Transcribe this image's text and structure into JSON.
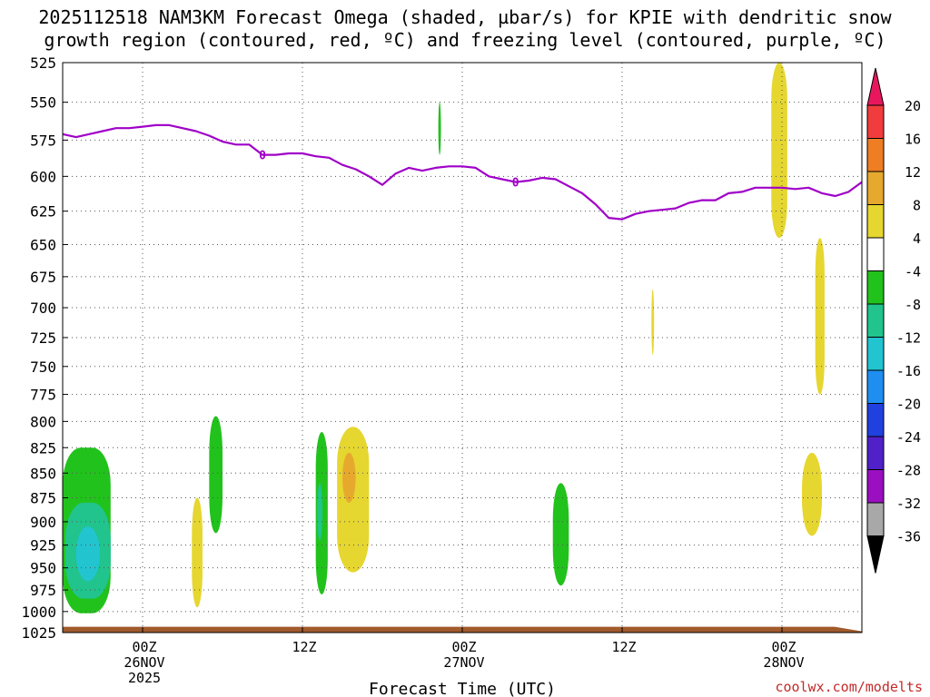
{
  "title_line1": "2025112518 NAM3KM Forecast Omega (shaded, µbar/s) for KPIE with dendritic snow",
  "title_line2": "growth region (contoured, red, ºC) and freezing level (contoured, purple, ºC)",
  "credit": "coolwx.com/modelts",
  "chart_data": {
    "type": "heatmap",
    "title": "2025112518 NAM3KM Forecast Omega (shaded, µbar/s) for KPIE with dendritic snow growth region (contoured, red, ºC) and freezing level (contoured, purple, ºC)",
    "xlabel": "Forecast Time (UTC)",
    "ylabel": "",
    "xlim_hours": [
      0,
      60
    ],
    "ylim_mb": [
      1025,
      525
    ],
    "y_scale": "log-pressure (inverted)",
    "grid": true,
    "y_ticks": [
      525,
      550,
      575,
      600,
      625,
      650,
      675,
      700,
      725,
      750,
      775,
      800,
      825,
      850,
      875,
      900,
      925,
      950,
      975,
      1000,
      1025
    ],
    "x_ticks": [
      {
        "hour": 6,
        "lines": [
          "00Z",
          "26NOV",
          "2025"
        ]
      },
      {
        "hour": 18,
        "lines": [
          "12Z"
        ]
      },
      {
        "hour": 30,
        "lines": [
          "00Z",
          "27NOV"
        ]
      },
      {
        "hour": 42,
        "lines": [
          "12Z"
        ]
      },
      {
        "hour": 54,
        "lines": [
          "00Z",
          "28NOV"
        ]
      }
    ],
    "colorbar": {
      "labels": [
        "20",
        "16",
        "12",
        "8",
        "4",
        "-4",
        "-8",
        "-12",
        "-16",
        "-20",
        "-24",
        "-28",
        "-32",
        "-36"
      ],
      "colors": [
        "#e8175d",
        "#f03c3c",
        "#ee7d24",
        "#e6a92e",
        "#e6d630",
        "#ffffff",
        "#22c21c",
        "#20c48c",
        "#22c4d0",
        "#1e8ff0",
        "#2040e0",
        "#5020c8",
        "#9a10c0",
        "#a8a8a8",
        "#000000"
      ]
    },
    "freezing_level": {
      "label": "0",
      "color": "#a000c8",
      "x": [
        0,
        1,
        2,
        3,
        4,
        5,
        6,
        7,
        8,
        9,
        10,
        11,
        12,
        13,
        14,
        15,
        16,
        17,
        18,
        19,
        20,
        21,
        22,
        23,
        24,
        25,
        26,
        27,
        28,
        29,
        30,
        31,
        32,
        33,
        34,
        35,
        36,
        37,
        38,
        39,
        40,
        41,
        42,
        43,
        44,
        45,
        46,
        47,
        48,
        49,
        50,
        51,
        52,
        53,
        54,
        55,
        56,
        57,
        58,
        59,
        60
      ],
      "y": [
        571,
        573,
        571,
        569,
        567,
        567,
        566,
        565,
        565,
        567,
        569,
        572,
        576,
        578,
        578,
        585,
        585,
        584,
        584,
        586,
        587,
        592,
        595,
        600,
        606,
        598,
        594,
        596,
        594,
        593,
        593,
        594,
        600,
        602,
        604,
        603,
        601,
        602,
        607,
        612,
        620,
        630,
        631,
        627,
        625,
        624,
        623,
        619,
        617,
        617,
        612,
        611,
        608,
        608,
        608,
        609,
        608,
        612,
        614,
        611,
        604
      ]
    },
    "omega_regions": [
      {
        "category": "-8",
        "color": "#22c21c",
        "x_range": [
          0,
          3.6
        ],
        "p_range": [
          825,
          1002
        ]
      },
      {
        "category": "-12",
        "color": "#20c48c",
        "x_range": [
          0.2,
          3.6
        ],
        "p_range": [
          880,
          985
        ]
      },
      {
        "category": "-16",
        "color": "#22c4d0",
        "x_range": [
          1,
          2.8
        ],
        "p_range": [
          905,
          965
        ]
      },
      {
        "category": "4",
        "color": "#e6d630",
        "x_range": [
          9.7,
          10.5
        ],
        "p_range": [
          875,
          995
        ]
      },
      {
        "category": "-8",
        "color": "#22c21c",
        "x_range": [
          11,
          12
        ],
        "p_range": [
          795,
          912
        ]
      },
      {
        "category": "-8",
        "color": "#22c21c",
        "x_range": [
          19,
          19.9
        ],
        "p_range": [
          810,
          980
        ]
      },
      {
        "category": "-12",
        "color": "#20c48c",
        "x_range": [
          19.1,
          19.5
        ],
        "p_range": [
          860,
          920
        ]
      },
      {
        "category": "4",
        "color": "#e6d630",
        "x_range": [
          20.6,
          23
        ],
        "p_range": [
          805,
          955
        ]
      },
      {
        "category": "8",
        "color": "#e6a92e",
        "x_range": [
          21,
          22
        ],
        "p_range": [
          830,
          880
        ]
      },
      {
        "category": "-8",
        "color": "#22c21c",
        "x_range": [
          28.2,
          28.4
        ],
        "p_range": [
          550,
          585
        ]
      },
      {
        "category": "-8",
        "color": "#22c21c",
        "x_range": [
          36.8,
          38
        ],
        "p_range": [
          860,
          970
        ]
      },
      {
        "category": "4",
        "color": "#e6d630",
        "x_range": [
          44.2,
          44.4
        ],
        "p_range": [
          685,
          740
        ]
      },
      {
        "category": "4",
        "color": "#e6d630",
        "x_range": [
          53.2,
          54.4
        ],
        "p_range": [
          525,
          645
        ]
      },
      {
        "category": "4",
        "color": "#e6d630",
        "x_range": [
          56.5,
          57.2
        ],
        "p_range": [
          645,
          775
        ]
      },
      {
        "category": "4",
        "color": "#e6d630",
        "x_range": [
          55.5,
          57
        ],
        "p_range": [
          830,
          915
        ]
      }
    ],
    "terrain": {
      "color": "#a05a2c",
      "surface_mb": 1018
    }
  }
}
